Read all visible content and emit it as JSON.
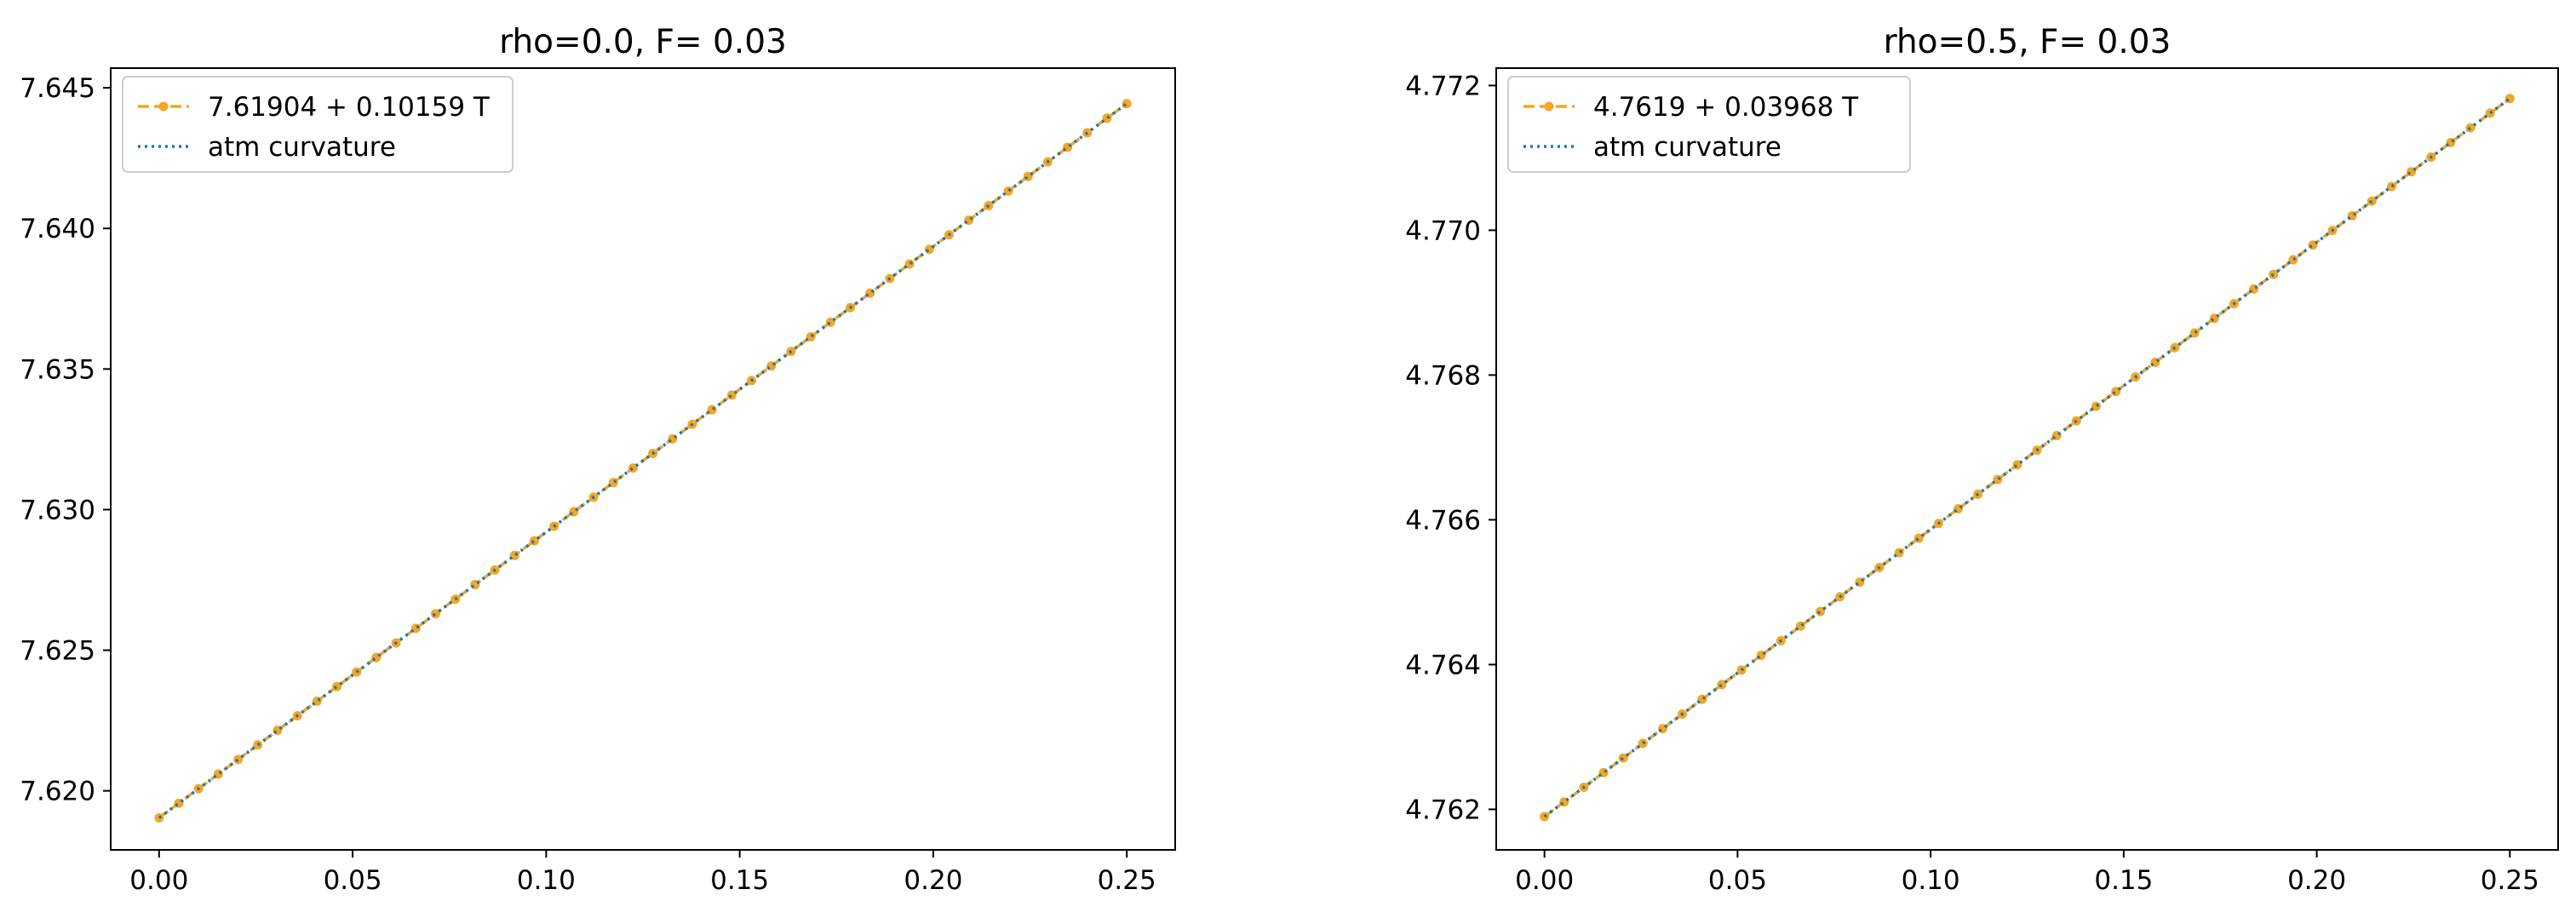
{
  "colors": {
    "fit_line": "#F5A623",
    "atm_curvature": "#1F77B4",
    "axes": "#000000",
    "background": "#ffffff"
  },
  "chart_data": [
    {
      "type": "line",
      "title": "rho=0.0, F= 0.03",
      "xlabel": "",
      "ylabel": "",
      "xlim": [
        -0.0125,
        0.2625
      ],
      "ylim": [
        7.6179,
        7.6457
      ],
      "xticks": [
        0.0,
        0.05,
        0.1,
        0.15,
        0.2,
        0.25
      ],
      "xtick_labels": [
        "0.00",
        "0.05",
        "0.10",
        "0.15",
        "0.20",
        "0.25"
      ],
      "yticks": [
        7.62,
        7.625,
        7.63,
        7.635,
        7.64,
        7.645
      ],
      "ytick_labels": [
        "7.620",
        "7.625",
        "7.630",
        "7.635",
        "7.640",
        "7.645"
      ],
      "grid": false,
      "legend_position": "top-left",
      "x_range": [
        0.0,
        0.25
      ],
      "point_count": 50,
      "series": [
        {
          "name": "7.61904 + 0.10159 T",
          "style": "dashed-dot-markers",
          "color": "#F5A623",
          "intercept": 7.61904,
          "slope": 0.10159
        },
        {
          "name": "atm curvature",
          "style": "dotted",
          "color": "#1F77B4",
          "intercept": 7.61904,
          "slope": 0.10159
        }
      ]
    },
    {
      "type": "line",
      "title": "rho=0.5, F= 0.03",
      "xlabel": "",
      "ylabel": "",
      "xlim": [
        -0.0125,
        0.2625
      ],
      "ylim": [
        4.76144,
        4.77224
      ],
      "xticks": [
        0.0,
        0.05,
        0.1,
        0.15,
        0.2,
        0.25
      ],
      "xtick_labels": [
        "0.00",
        "0.05",
        "0.10",
        "0.15",
        "0.20",
        "0.25"
      ],
      "yticks": [
        4.762,
        4.764,
        4.766,
        4.768,
        4.77,
        4.772
      ],
      "ytick_labels": [
        "4.762",
        "4.764",
        "4.766",
        "4.768",
        "4.770",
        "4.772"
      ],
      "grid": false,
      "legend_position": "top-left",
      "x_range": [
        0.0,
        0.25
      ],
      "point_count": 50,
      "series": [
        {
          "name": "4.7619 + 0.03968 T",
          "style": "dashed-dot-markers",
          "color": "#F5A623",
          "intercept": 4.7619,
          "slope": 0.03968
        },
        {
          "name": "atm curvature",
          "style": "dotted",
          "color": "#1F77B4",
          "intercept": 4.7619,
          "slope": 0.03968
        }
      ]
    }
  ]
}
